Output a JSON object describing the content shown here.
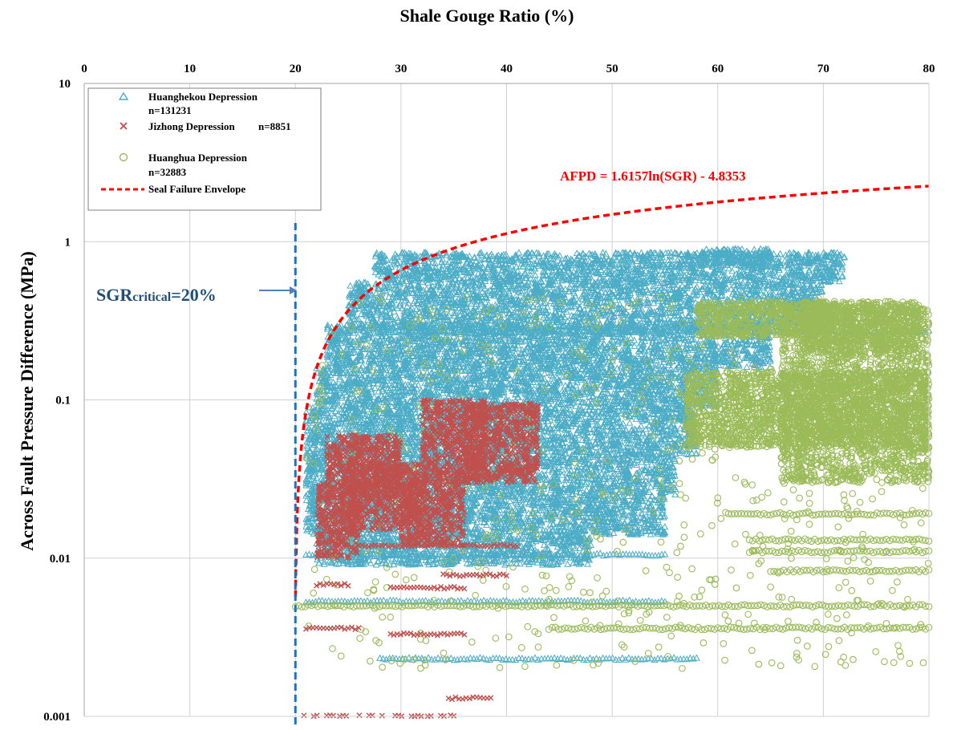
{
  "chart_data": {
    "type": "scatter",
    "title": "Shale Gouge Ratio (%)",
    "xlabel": "Shale Gouge Ratio (%)",
    "ylabel": "Across Fault Pressure Difference (MPa)",
    "xlim": [
      0,
      80
    ],
    "ylim": [
      0.001,
      10
    ],
    "yscale": "log",
    "x_axis_position": "top",
    "x_ticks": [
      "0",
      "10",
      "20",
      "30",
      "40",
      "50",
      "60",
      "70",
      "80"
    ],
    "y_ticks": [
      "10",
      "1",
      "0.1",
      "0.01",
      "0.001"
    ],
    "grid": true,
    "legend_position": "top-left",
    "series": [
      {
        "name": "Huanghekou Depression",
        "count_label": "n=131231",
        "marker": "triangle",
        "color": "#4bacc6",
        "bands": [
          {
            "x": [
              27.5,
              72
            ],
            "y_from": 0.55,
            "y_to": 0.85
          },
          {
            "x": [
              25,
              70
            ],
            "y_from": 0.28,
            "y_to": 0.55
          },
          {
            "x": [
              23,
              65
            ],
            "y_from": 0.16,
            "y_to": 0.3
          },
          {
            "x": [
              22,
              60
            ],
            "y_from": 0.09,
            "y_to": 0.16
          },
          {
            "x": [
              21,
              58
            ],
            "y_from": 0.045,
            "y_to": 0.09
          },
          {
            "x": [
              21,
              56
            ],
            "y_from": 0.025,
            "y_to": 0.045
          },
          {
            "x": [
              21,
              55
            ],
            "y_from": 0.014,
            "y_to": 0.025
          },
          {
            "x": [
              22,
              48
            ],
            "y_from": 0.009,
            "y_to": 0.014
          },
          {
            "x": [
              58,
              65
            ],
            "y_from": 0.7,
            "y_to": 0.9
          }
        ],
        "lines": [
          {
            "x": [
              21,
              55
            ],
            "y": 0.0053
          },
          {
            "x": [
              28,
              58
            ],
            "y": 0.0023
          },
          {
            "x": [
              21,
              55
            ],
            "y": 0.0105
          },
          {
            "x": [
              28,
              80
            ],
            "y": 0.27
          }
        ]
      },
      {
        "name": "Jizhong Depression",
        "count_label": "n=8851",
        "marker": "x",
        "color": "#c0504d",
        "bands": [
          {
            "x": [
              23,
              30
            ],
            "y_from": 0.025,
            "y_to": 0.06
          },
          {
            "x": [
              25,
              32
            ],
            "y_from": 0.015,
            "y_to": 0.04
          },
          {
            "x": [
              32,
              38
            ],
            "y_from": 0.03,
            "y_to": 0.1
          },
          {
            "x": [
              36,
              43
            ],
            "y_from": 0.03,
            "y_to": 0.095
          },
          {
            "x": [
              22,
              26
            ],
            "y_from": 0.01,
            "y_to": 0.03
          },
          {
            "x": [
              30,
              36
            ],
            "y_from": 0.012,
            "y_to": 0.03
          }
        ],
        "lines": [
          {
            "x": [
              20.5,
              35
            ],
            "y": 0.001
          },
          {
            "x": [
              34.5,
              38.5
            ],
            "y": 0.0013
          },
          {
            "x": [
              21,
              26
            ],
            "y": 0.0036
          },
          {
            "x": [
              29,
              36
            ],
            "y": 0.0033
          },
          {
            "x": [
              22,
              25
            ],
            "y": 0.0068
          },
          {
            "x": [
              29,
              36
            ],
            "y": 0.0065
          },
          {
            "x": [
              34,
              40
            ],
            "y": 0.0078
          },
          {
            "x": [
              26,
              41
            ],
            "y": 0.012
          }
        ]
      },
      {
        "name": "Huanghua Depression",
        "count_label": "n=32883",
        "marker": "circle",
        "color": "#9bbb59",
        "bands": [
          {
            "x": [
              57,
              80
            ],
            "y_from": 0.05,
            "y_to": 0.15
          },
          {
            "x": [
              66,
              80
            ],
            "y_from": 0.03,
            "y_to": 0.4
          },
          {
            "x": [
              58,
              71
            ],
            "y_from": 0.25,
            "y_to": 0.42
          },
          {
            "x": [
              68,
              79
            ],
            "y_from": 0.2,
            "y_to": 0.42
          }
        ],
        "lines": [
          {
            "x": [
              20,
              80
            ],
            "y": 0.005
          },
          {
            "x": [
              44,
              80
            ],
            "y": 0.0036
          },
          {
            "x": [
              61,
              80
            ],
            "y": 0.019
          },
          {
            "x": [
              63,
              80
            ],
            "y": 0.011
          },
          {
            "x": [
              65,
              80
            ],
            "y": 0.0083
          },
          {
            "x": [
              63,
              80
            ],
            "y": 0.013
          }
        ],
        "scatter_region": {
          "x": [
            21,
            80
          ],
          "y_from": 0.002,
          "y_to": 0.45
        }
      },
      {
        "name": "Seal Failure Envelope",
        "type": "line",
        "style": "dashed",
        "color": "#ff0000",
        "equation": "AFPD = 1.6157ln(SGR) - 4.8353",
        "a": 1.6157,
        "b": -4.8353,
        "x_range": [
          20.01,
          80
        ]
      }
    ],
    "annotations": [
      {
        "text_main": "SGR",
        "text_sub": "critical",
        "text_tail": "=20%",
        "x": 20,
        "color": "#1f4e79"
      },
      {
        "text": "AFPD = 1.6157ln(SGR) - 4.8353",
        "color": "#ff0000"
      }
    ],
    "reference_line": {
      "x": 20,
      "color": "#1f72c0",
      "style": "dashed"
    }
  }
}
